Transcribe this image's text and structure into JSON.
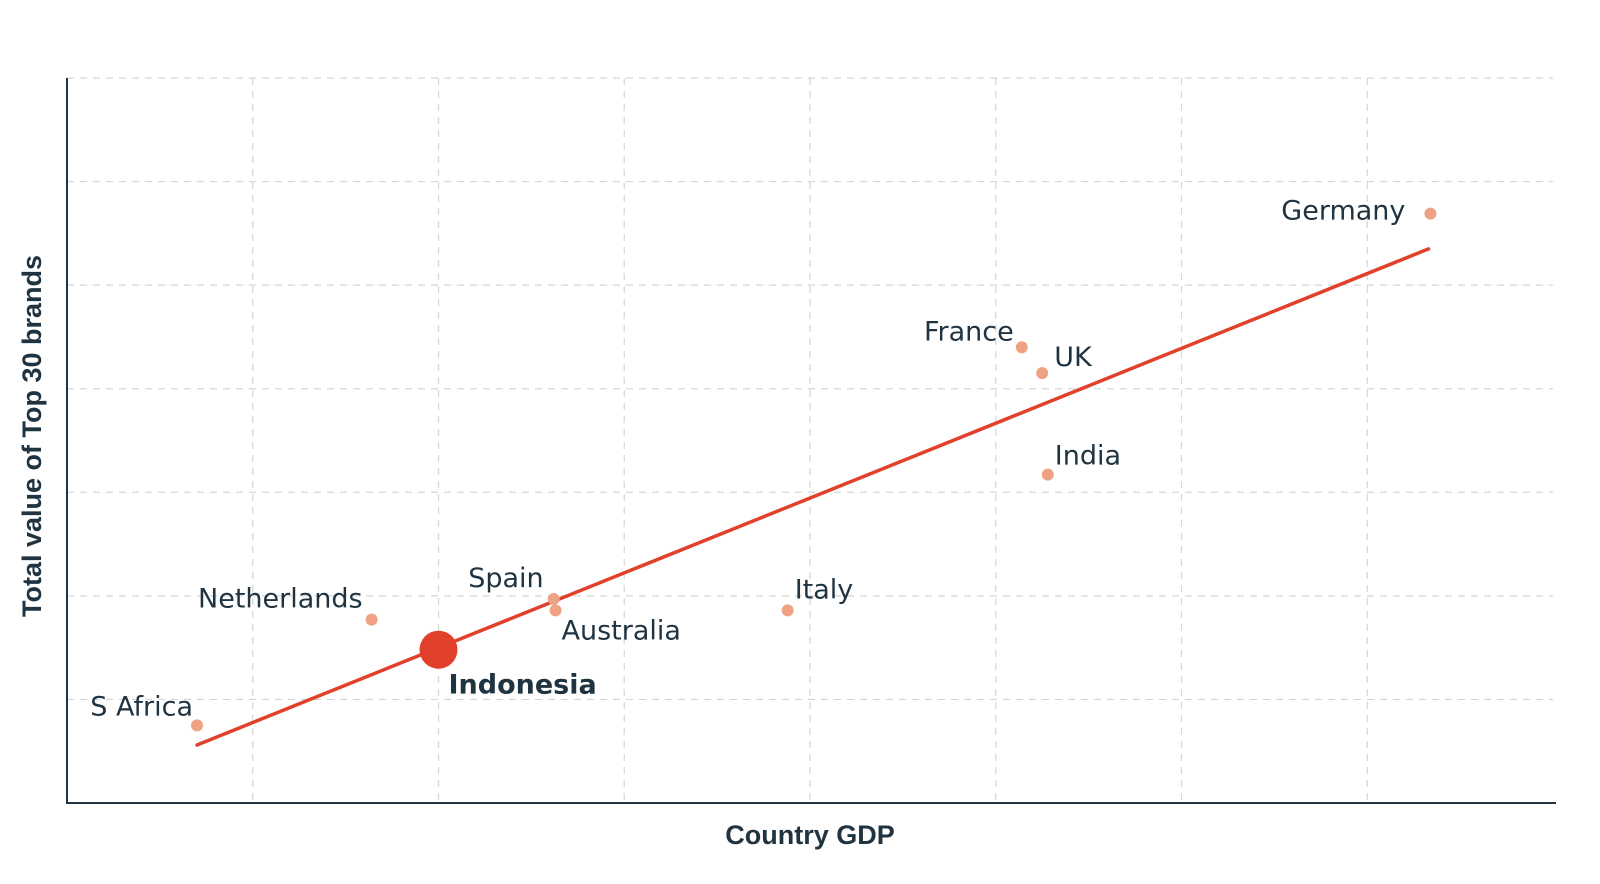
{
  "chart_data": {
    "type": "scatter",
    "title": "",
    "xlabel": "Country GDP",
    "ylabel": "Total value of Top 30 brands",
    "xlim": [
      0,
      8
    ],
    "ylim": [
      0,
      7
    ],
    "grid": true,
    "x_gridlines": [
      1,
      2,
      3,
      4,
      5,
      6,
      7
    ],
    "y_gridlines": [
      1,
      2,
      3,
      4,
      5,
      6,
      7
    ],
    "colors": {
      "point": "#eea283",
      "highlight": "#e1402b",
      "trend": "#e1402b",
      "text": "#1f3340",
      "grid": "#d6d6d6"
    },
    "points": [
      {
        "label": "S Africa",
        "x": 0.7,
        "y": 0.75
      },
      {
        "label": "Netherlands",
        "x": 1.64,
        "y": 1.77
      },
      {
        "label": "Indonesia",
        "x": 2.0,
        "y": 1.48,
        "highlight": true
      },
      {
        "label": "Spain",
        "x": 2.62,
        "y": 1.97
      },
      {
        "label": "Australia",
        "x": 2.63,
        "y": 1.86
      },
      {
        "label": "Italy",
        "x": 3.88,
        "y": 1.86
      },
      {
        "label": "France",
        "x": 5.14,
        "y": 4.4
      },
      {
        "label": "UK",
        "x": 5.25,
        "y": 4.15
      },
      {
        "label": "India",
        "x": 5.28,
        "y": 3.17
      },
      {
        "label": "Germany",
        "x": 7.34,
        "y": 5.69
      }
    ],
    "trendline": {
      "x": [
        0.7,
        7.33
      ],
      "y": [
        0.56,
        5.35
      ]
    }
  }
}
